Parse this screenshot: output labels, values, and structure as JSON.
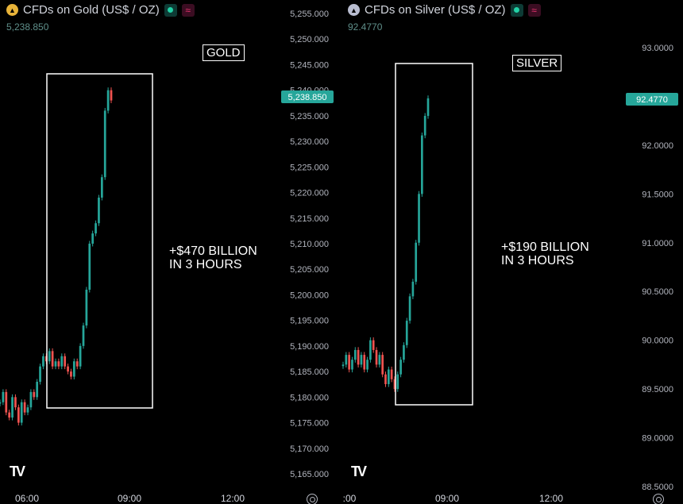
{
  "panels": [
    {
      "id": "gold",
      "title": "CFDs on Gold (US$ / OZ)",
      "last_value_text": "5,238.850",
      "price_tag": "5,238.850",
      "box_label": "GOLD",
      "annotation_line1": "+$470 BILLION",
      "annotation_line2": "IN 3 HOURS",
      "icon": "gold-coin-icon",
      "x_labels": [
        "06:00",
        "09:00",
        "12:00"
      ]
    },
    {
      "id": "silver",
      "title": "CFDs on Silver (US$ / OZ)",
      "last_value_text": "92.4770",
      "price_tag": "92.4770",
      "box_label": "SILVER",
      "annotation_line1": "+$190 BILLION",
      "annotation_line2": "IN 3 HOURS",
      "icon": "silver-coin-icon",
      "x_labels": [
        ":00",
        "09:00",
        "12:00"
      ]
    }
  ],
  "chart_data": [
    {
      "type": "line",
      "title": "CFDs on Gold (US$ / OZ)",
      "xlabel": "",
      "ylabel": "",
      "y_ticks": [
        "5,255.000",
        "5,250.000",
        "5,245.000",
        "5,240.000",
        "5,235.000",
        "5,230.000",
        "5,225.000",
        "5,220.000",
        "5,215.000",
        "5,210.000",
        "5,205.000",
        "5,200.000",
        "5,195.000",
        "5,190.000",
        "5,185.000",
        "5,180.000",
        "5,175.000",
        "5,170.000",
        "5,165.000"
      ],
      "ylim": [
        5165,
        5255
      ],
      "x_ticks": [
        "06:00",
        "09:00",
        "12:00"
      ],
      "last_price": 5238.85,
      "up_color": "#26a69a",
      "down_color": "#ef5350",
      "series": [
        {
          "values": [
            5179,
            5181,
            5177,
            5176,
            5180,
            5178,
            5175,
            5179,
            5177,
            5178,
            5181,
            5180,
            5183,
            5186,
            5188,
            5187,
            5189,
            5186,
            5187,
            5186,
            5188,
            5186,
            5185,
            5184,
            5187,
            5186,
            5190,
            5194,
            5201,
            5210,
            5212,
            5214,
            5219,
            5223,
            5236,
            5240,
            5238
          ]
        }
      ]
    },
    {
      "type": "line",
      "title": "CFDs on Silver (US$ / OZ)",
      "xlabel": "",
      "ylabel": "",
      "y_ticks": [
        "93.0000",
        "92.5000",
        "92.0000",
        "91.5000",
        "91.0000",
        "90.5000",
        "90.0000",
        "89.5000",
        "89.0000",
        "88.5000"
      ],
      "ylim": [
        88.5,
        93.4
      ],
      "x_ticks": [
        ":00",
        "09:00",
        "12:00"
      ],
      "last_price": 92.477,
      "up_color": "#26a69a",
      "down_color": "#ef5350",
      "series": [
        {
          "values": [
            89.75,
            89.85,
            89.7,
            89.8,
            89.9,
            89.75,
            89.85,
            89.7,
            89.8,
            90.0,
            89.9,
            89.75,
            89.85,
            89.65,
            89.55,
            89.7,
            89.6,
            89.5,
            89.65,
            89.8,
            89.95,
            90.2,
            90.45,
            90.6,
            91.0,
            91.5,
            92.1,
            92.3,
            92.48
          ]
        }
      ]
    }
  ]
}
